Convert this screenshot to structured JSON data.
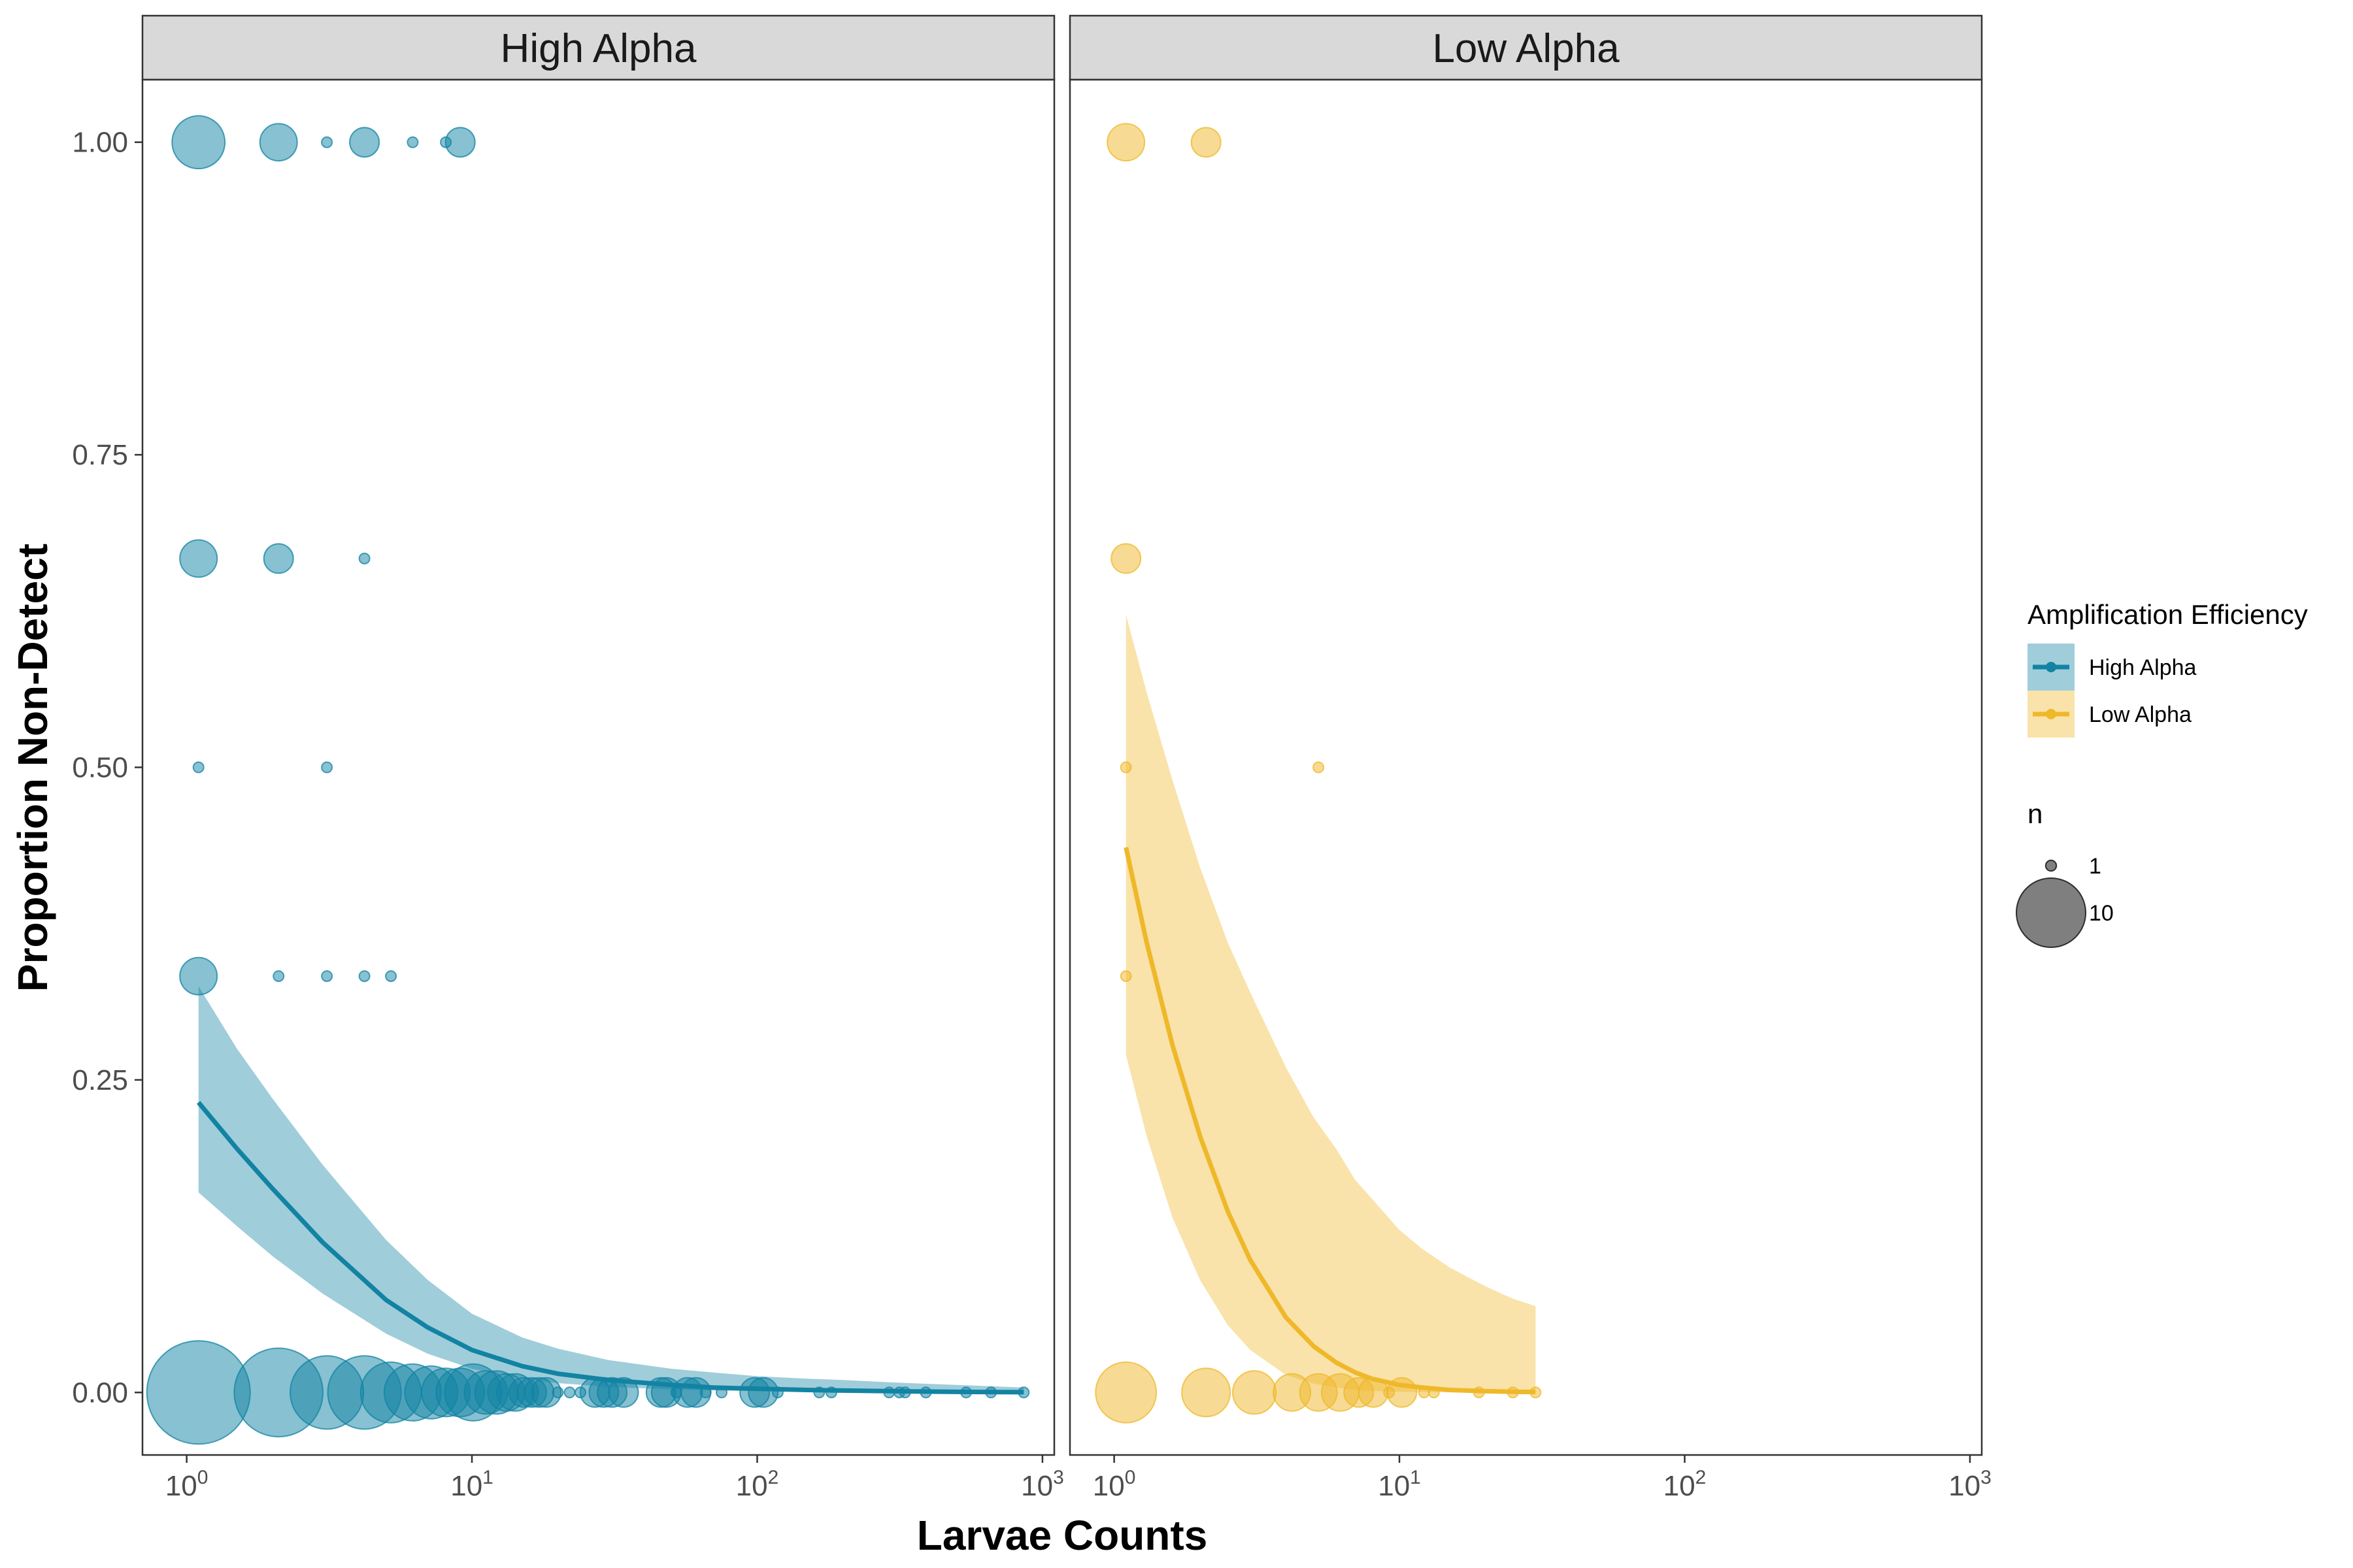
{
  "chart_data": {
    "type": "scatter",
    "xlabel": "Larvae Counts",
    "ylabel": "Proportion Non-Detect",
    "xscale": "log10",
    "xlim": [
      0.7,
      1100
    ],
    "ylim": [
      -0.05,
      1.05
    ],
    "xticks": [
      {
        "base": "10",
        "exp": "0"
      },
      {
        "base": "10",
        "exp": "1"
      },
      {
        "base": "10",
        "exp": "2"
      },
      {
        "base": "10",
        "exp": "3"
      }
    ],
    "yticks": [
      "0.00",
      "0.25",
      "0.50",
      "0.75",
      "1.00"
    ],
    "colors": {
      "High Alpha": "#1283a3",
      "Low Alpha": "#efb82a"
    },
    "legend": {
      "color_title": "Amplification Efficiency",
      "color_entries": [
        "High Alpha",
        "Low Alpha"
      ],
      "size_title": "n",
      "size_entries": [
        {
          "label": "1",
          "n": 1
        },
        {
          "label": "10",
          "n": 10
        }
      ],
      "position": "right"
    },
    "panels": [
      {
        "name": "High Alpha",
        "points": [
          {
            "x": 1.1,
            "y": 1.0,
            "n": 6
          },
          {
            "x": 2.1,
            "y": 1.0,
            "n": 3
          },
          {
            "x": 3.1,
            "y": 1.0,
            "n": 1
          },
          {
            "x": 4.2,
            "y": 1.0,
            "n": 2
          },
          {
            "x": 6.2,
            "y": 1.0,
            "n": 1
          },
          {
            "x": 8.1,
            "y": 1.0,
            "n": 1
          },
          {
            "x": 9.1,
            "y": 1.0,
            "n": 2
          },
          {
            "x": 1.1,
            "y": 0.667,
            "n": 3
          },
          {
            "x": 2.1,
            "y": 0.667,
            "n": 2
          },
          {
            "x": 4.2,
            "y": 0.667,
            "n": 1
          },
          {
            "x": 1.1,
            "y": 0.5,
            "n": 1
          },
          {
            "x": 3.1,
            "y": 0.5,
            "n": 1
          },
          {
            "x": 1.1,
            "y": 0.333,
            "n": 3
          },
          {
            "x": 2.1,
            "y": 0.333,
            "n": 1
          },
          {
            "x": 3.1,
            "y": 0.333,
            "n": 1
          },
          {
            "x": 4.2,
            "y": 0.333,
            "n": 1
          },
          {
            "x": 5.2,
            "y": 0.333,
            "n": 1
          },
          {
            "x": 1.1,
            "y": 0.0,
            "n": 25
          },
          {
            "x": 2.1,
            "y": 0.0,
            "n": 18
          },
          {
            "x": 3.1,
            "y": 0.0,
            "n": 12
          },
          {
            "x": 4.2,
            "y": 0.0,
            "n": 12
          },
          {
            "x": 5.2,
            "y": 0.0,
            "n": 8
          },
          {
            "x": 6.2,
            "y": 0.0,
            "n": 7
          },
          {
            "x": 7.2,
            "y": 0.0,
            "n": 6
          },
          {
            "x": 8.1,
            "y": 0.0,
            "n": 5
          },
          {
            "x": 9.1,
            "y": 0.0,
            "n": 5
          },
          {
            "x": 10.1,
            "y": 0.0,
            "n": 7
          },
          {
            "x": 11.2,
            "y": 0.0,
            "n": 4
          },
          {
            "x": 12.2,
            "y": 0.0,
            "n": 4
          },
          {
            "x": 13.2,
            "y": 0.0,
            "n": 3
          },
          {
            "x": 14.2,
            "y": 0.0,
            "n": 3
          },
          {
            "x": 15.2,
            "y": 0.0,
            "n": 2
          },
          {
            "x": 16.2,
            "y": 0.0,
            "n": 2
          },
          {
            "x": 17.2,
            "y": 0.0,
            "n": 2
          },
          {
            "x": 18.2,
            "y": 0.0,
            "n": 2
          },
          {
            "x": 20,
            "y": 0.0,
            "n": 1
          },
          {
            "x": 22,
            "y": 0.0,
            "n": 1
          },
          {
            "x": 24,
            "y": 0.0,
            "n": 1
          },
          {
            "x": 27,
            "y": 0.0,
            "n": 2
          },
          {
            "x": 29,
            "y": 0.0,
            "n": 2
          },
          {
            "x": 31,
            "y": 0.0,
            "n": 2
          },
          {
            "x": 34,
            "y": 0.0,
            "n": 2
          },
          {
            "x": 46,
            "y": 0.0,
            "n": 2
          },
          {
            "x": 48,
            "y": 0.0,
            "n": 2
          },
          {
            "x": 52,
            "y": 0.0,
            "n": 1
          },
          {
            "x": 57,
            "y": 0.0,
            "n": 2
          },
          {
            "x": 61,
            "y": 0.0,
            "n": 2
          },
          {
            "x": 66,
            "y": 0.0,
            "n": 1
          },
          {
            "x": 75,
            "y": 0.0,
            "n": 1
          },
          {
            "x": 98,
            "y": 0.0,
            "n": 2
          },
          {
            "x": 105,
            "y": 0.0,
            "n": 2
          },
          {
            "x": 118,
            "y": 0.0,
            "n": 1
          },
          {
            "x": 165,
            "y": 0.0,
            "n": 1
          },
          {
            "x": 182,
            "y": 0.0,
            "n": 1
          },
          {
            "x": 290,
            "y": 0.0,
            "n": 1
          },
          {
            "x": 315,
            "y": 0.0,
            "n": 1
          },
          {
            "x": 330,
            "y": 0.0,
            "n": 1
          },
          {
            "x": 390,
            "y": 0.0,
            "n": 1
          },
          {
            "x": 540,
            "y": 0.0,
            "n": 1
          },
          {
            "x": 660,
            "y": 0.0,
            "n": 1
          },
          {
            "x": 860,
            "y": 0.0,
            "n": 1
          }
        ],
        "fit": {
          "x": [
            1.1,
            1.5,
            2,
            3,
            5,
            7,
            10,
            15,
            20,
            30,
            50,
            70,
            100,
            150,
            200,
            300,
            500,
            860
          ],
          "y": [
            0.232,
            0.195,
            0.163,
            0.12,
            0.074,
            0.052,
            0.034,
            0.021,
            0.015,
            0.01,
            0.006,
            0.004,
            0.003,
            0.002,
            0.0015,
            0.001,
            0.0005,
            0.0002
          ],
          "lower": [
            0.16,
            0.133,
            0.109,
            0.079,
            0.047,
            0.031,
            0.019,
            0.011,
            0.0075,
            0.0045,
            0.0025,
            0.0016,
            0.0011,
            0.0007,
            0.0005,
            0.0003,
            0.0002,
            0.0001
          ],
          "upper": [
            0.325,
            0.275,
            0.235,
            0.182,
            0.122,
            0.09,
            0.063,
            0.044,
            0.035,
            0.026,
            0.019,
            0.016,
            0.013,
            0.011,
            0.01,
            0.008,
            0.006,
            0.004
          ]
        }
      },
      {
        "name": "Low Alpha",
        "points": [
          {
            "x": 1.1,
            "y": 1.0,
            "n": 3
          },
          {
            "x": 2.1,
            "y": 1.0,
            "n": 2
          },
          {
            "x": 1.1,
            "y": 0.667,
            "n": 2
          },
          {
            "x": 1.1,
            "y": 0.5,
            "n": 1
          },
          {
            "x": 5.2,
            "y": 0.5,
            "n": 1
          },
          {
            "x": 1.1,
            "y": 0.333,
            "n": 1
          },
          {
            "x": 1.1,
            "y": 0.0,
            "n": 8
          },
          {
            "x": 2.1,
            "y": 0.0,
            "n": 5
          },
          {
            "x": 3.1,
            "y": 0.0,
            "n": 4
          },
          {
            "x": 4.2,
            "y": 0.0,
            "n": 3
          },
          {
            "x": 5.2,
            "y": 0.0,
            "n": 3
          },
          {
            "x": 6.2,
            "y": 0.0,
            "n": 3
          },
          {
            "x": 7.2,
            "y": 0.0,
            "n": 2
          },
          {
            "x": 8.1,
            "y": 0.0,
            "n": 2
          },
          {
            "x": 9.2,
            "y": 0.0,
            "n": 1
          },
          {
            "x": 10.2,
            "y": 0.0,
            "n": 2
          },
          {
            "x": 12.2,
            "y": 0.0,
            "n": 1
          },
          {
            "x": 13.2,
            "y": 0.0,
            "n": 1
          },
          {
            "x": 19,
            "y": 0.0,
            "n": 1
          },
          {
            "x": 25,
            "y": 0.0,
            "n": 1
          },
          {
            "x": 30,
            "y": 0.0,
            "n": 1
          }
        ],
        "fit": {
          "x": [
            1.1,
            1.3,
            1.6,
            2,
            2.5,
            3,
            4,
            5,
            6,
            7,
            8,
            10,
            12,
            15,
            20,
            25,
            30
          ],
          "y": [
            0.436,
            0.36,
            0.278,
            0.205,
            0.145,
            0.106,
            0.06,
            0.037,
            0.024,
            0.016,
            0.011,
            0.006,
            0.004,
            0.002,
            0.001,
            0.0006,
            0.0004
          ],
          "lower": [
            0.27,
            0.205,
            0.14,
            0.09,
            0.054,
            0.034,
            0.014,
            0.007,
            0.004,
            0.002,
            0.0012,
            0.0005,
            0.0003,
            0.0001,
            5e-05,
            3e-05,
            2e-05
          ],
          "upper": [
            0.622,
            0.56,
            0.49,
            0.42,
            0.36,
            0.32,
            0.26,
            0.22,
            0.195,
            0.17,
            0.155,
            0.13,
            0.115,
            0.1,
            0.085,
            0.075,
            0.069
          ]
        }
      }
    ]
  }
}
